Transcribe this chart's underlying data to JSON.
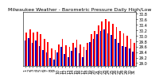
{
  "title": "Milwaukee Weather - Barometric Pressure Daily High/Low",
  "high_color": "#FF0000",
  "low_color": "#0000BB",
  "background_color": "#FFFFFF",
  "ylim": [
    28.9,
    30.85
  ],
  "ytick_labels": [
    "29.0",
    "29.2",
    "29.4",
    "29.6",
    "29.8",
    "30.0",
    "30.2",
    "30.4",
    "30.6",
    "30.8"
  ],
  "ytick_vals": [
    29.0,
    29.2,
    29.4,
    29.6,
    29.8,
    30.0,
    30.2,
    30.4,
    30.6,
    30.8
  ],
  "n_days": 31,
  "highs": [
    30.12,
    30.22,
    30.1,
    30.15,
    30.05,
    29.88,
    29.75,
    29.52,
    29.48,
    29.68,
    29.88,
    29.65,
    29.58,
    29.72,
    29.85,
    29.68,
    29.58,
    29.72,
    30.05,
    30.18,
    30.38,
    30.52,
    30.6,
    30.5,
    30.42,
    30.32,
    30.18,
    30.08,
    29.98,
    29.88,
    29.72
  ],
  "lows": [
    29.82,
    29.92,
    29.72,
    29.82,
    29.62,
    29.48,
    29.38,
    29.18,
    29.12,
    29.38,
    29.58,
    29.32,
    29.22,
    29.45,
    29.55,
    29.35,
    29.22,
    29.48,
    29.75,
    29.88,
    30.05,
    30.18,
    30.22,
    30.08,
    30.02,
    29.88,
    29.72,
    29.62,
    29.58,
    29.52,
    29.42
  ],
  "bar_width": 0.38,
  "title_fontsize": 4.5,
  "tick_fontsize": 3.5,
  "bar_bottom": 28.9
}
